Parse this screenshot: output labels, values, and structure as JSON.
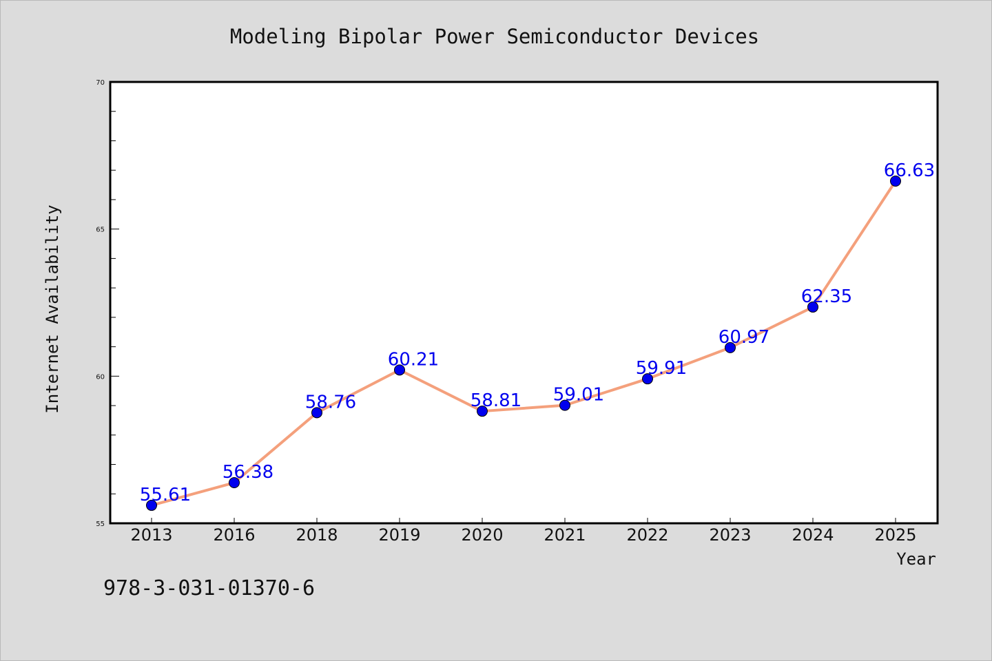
{
  "chart_data": {
    "type": "line",
    "title": "Modeling Bipolar Power Semiconductor Devices",
    "xlabel": "Year",
    "ylabel": "Internet Availability",
    "categories": [
      "2013",
      "2016",
      "2018",
      "2019",
      "2020",
      "2021",
      "2022",
      "2023",
      "2024",
      "2025"
    ],
    "series": [
      {
        "values": [
          55.61,
          56.38,
          58.76,
          60.21,
          58.81,
          59.01,
          59.91,
          60.97,
          62.35,
          66.63
        ],
        "data_labels": [
          "55.61",
          "56.38",
          "58.76",
          "60.21",
          "58.81",
          "59.01",
          "59.91",
          "60.97",
          "62.35",
          "66.63"
        ]
      }
    ],
    "ylim": [
      55,
      70
    ],
    "yticks": [
      "55",
      "60",
      "65",
      "70"
    ],
    "y_minor_step": 1,
    "grid": false,
    "line_color": "#f4a07c",
    "marker_color": "#0000ee",
    "label_color": "#0000ee"
  },
  "footer": {
    "isbn": "978-3-031-01370-6"
  }
}
